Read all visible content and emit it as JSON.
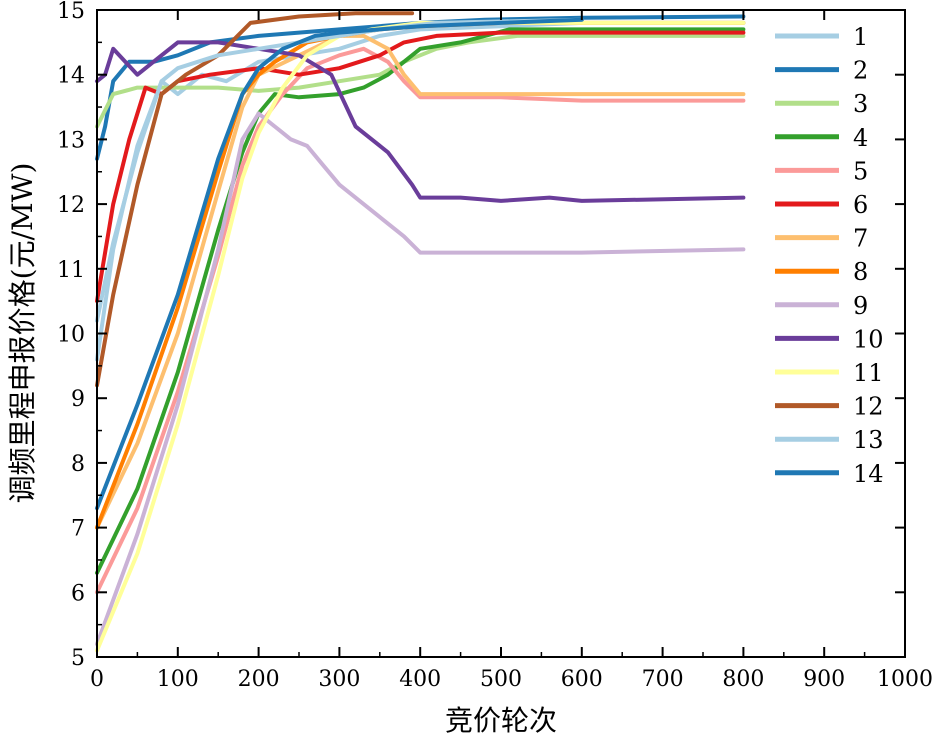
{
  "chart_data": {
    "type": "line",
    "title": "",
    "xlabel": "竞价轮次",
    "ylabel": "调频里程申报价格(元/MW)",
    "xlim": [
      0,
      1000
    ],
    "ylim": [
      5,
      15
    ],
    "x_ticks": [
      "0",
      "100",
      "200",
      "300",
      "400",
      "500",
      "600",
      "700",
      "800",
      "900",
      "1000"
    ],
    "y_ticks": [
      "5",
      "6",
      "7",
      "8",
      "9",
      "10",
      "11",
      "12",
      "13",
      "14",
      "15"
    ],
    "grid": false,
    "legend_position": "right",
    "series": [
      {
        "name": "1",
        "color": "#a6cee3",
        "points": [
          [
            0,
            9.6
          ],
          [
            20,
            11.3
          ],
          [
            50,
            12.9
          ],
          [
            80,
            13.9
          ],
          [
            100,
            13.7
          ],
          [
            130,
            14.0
          ],
          [
            160,
            13.9
          ],
          [
            200,
            14.2
          ],
          [
            250,
            14.3
          ],
          [
            300,
            14.4
          ],
          [
            350,
            14.6
          ],
          [
            400,
            14.7
          ],
          [
            500,
            14.75
          ],
          [
            600,
            14.8
          ],
          [
            800,
            14.8
          ]
        ]
      },
      {
        "name": "2",
        "color": "#1f78b4",
        "points": [
          [
            0,
            12.7
          ],
          [
            10,
            13.2
          ],
          [
            20,
            13.9
          ],
          [
            40,
            14.2
          ],
          [
            70,
            14.2
          ],
          [
            100,
            14.3
          ],
          [
            140,
            14.5
          ],
          [
            200,
            14.6
          ],
          [
            300,
            14.7
          ],
          [
            400,
            14.8
          ],
          [
            480,
            14.85
          ],
          [
            600,
            14.88
          ],
          [
            800,
            14.9
          ]
        ]
      },
      {
        "name": "3",
        "color": "#b2df8a",
        "points": [
          [
            0,
            13.2
          ],
          [
            20,
            13.7
          ],
          [
            50,
            13.8
          ],
          [
            100,
            13.8
          ],
          [
            150,
            13.8
          ],
          [
            200,
            13.75
          ],
          [
            250,
            13.8
          ],
          [
            300,
            13.9
          ],
          [
            350,
            14.0
          ],
          [
            380,
            14.2
          ],
          [
            420,
            14.4
          ],
          [
            460,
            14.5
          ],
          [
            520,
            14.6
          ],
          [
            600,
            14.6
          ],
          [
            800,
            14.6
          ]
        ]
      },
      {
        "name": "4",
        "color": "#33a02c",
        "points": [
          [
            0,
            6.3
          ],
          [
            50,
            7.6
          ],
          [
            100,
            9.4
          ],
          [
            150,
            11.6
          ],
          [
            180,
            12.8
          ],
          [
            200,
            13.4
          ],
          [
            220,
            13.7
          ],
          [
            250,
            13.65
          ],
          [
            300,
            13.7
          ],
          [
            330,
            13.8
          ],
          [
            360,
            14.0
          ],
          [
            400,
            14.4
          ],
          [
            450,
            14.5
          ],
          [
            510,
            14.7
          ],
          [
            600,
            14.7
          ],
          [
            800,
            14.7
          ]
        ]
      },
      {
        "name": "5",
        "color": "#fb9a99",
        "points": [
          [
            0,
            6.0
          ],
          [
            50,
            7.3
          ],
          [
            100,
            9.1
          ],
          [
            150,
            11.2
          ],
          [
            180,
            12.6
          ],
          [
            200,
            13.2
          ],
          [
            230,
            13.7
          ],
          [
            260,
            14.1
          ],
          [
            300,
            14.3
          ],
          [
            330,
            14.4
          ],
          [
            360,
            14.2
          ],
          [
            380,
            13.9
          ],
          [
            400,
            13.65
          ],
          [
            500,
            13.65
          ],
          [
            600,
            13.6
          ],
          [
            800,
            13.6
          ]
        ]
      },
      {
        "name": "6",
        "color": "#e31a1c",
        "points": [
          [
            0,
            10.5
          ],
          [
            20,
            12.0
          ],
          [
            40,
            13.0
          ],
          [
            60,
            13.8
          ],
          [
            80,
            13.7
          ],
          [
            100,
            13.9
          ],
          [
            140,
            14.0
          ],
          [
            200,
            14.1
          ],
          [
            250,
            14.0
          ],
          [
            300,
            14.1
          ],
          [
            350,
            14.3
          ],
          [
            380,
            14.5
          ],
          [
            420,
            14.6
          ],
          [
            500,
            14.65
          ],
          [
            600,
            14.65
          ],
          [
            800,
            14.65
          ]
        ]
      },
      {
        "name": "7",
        "color": "#fdbf6f",
        "points": [
          [
            0,
            7.0
          ],
          [
            50,
            8.3
          ],
          [
            100,
            10.0
          ],
          [
            150,
            12.2
          ],
          [
            180,
            13.5
          ],
          [
            200,
            14.0
          ],
          [
            250,
            14.3
          ],
          [
            300,
            14.6
          ],
          [
            330,
            14.6
          ],
          [
            360,
            14.4
          ],
          [
            380,
            14.0
          ],
          [
            400,
            13.7
          ],
          [
            500,
            13.7
          ],
          [
            600,
            13.7
          ],
          [
            800,
            13.7
          ]
        ]
      },
      {
        "name": "8",
        "color": "#ff7f00",
        "points": [
          [
            0,
            7.0
          ],
          [
            50,
            8.6
          ],
          [
            100,
            10.4
          ],
          [
            150,
            12.5
          ],
          [
            180,
            13.7
          ],
          [
            200,
            14.0
          ],
          [
            220,
            14.2
          ],
          [
            260,
            14.5
          ],
          [
            300,
            14.6
          ],
          [
            350,
            14.7
          ],
          [
            400,
            14.75
          ],
          [
            500,
            14.8
          ],
          [
            600,
            14.8
          ],
          [
            800,
            14.8
          ]
        ]
      },
      {
        "name": "9",
        "color": "#cab2d6",
        "points": [
          [
            0,
            5.2
          ],
          [
            50,
            6.9
          ],
          [
            100,
            8.9
          ],
          [
            150,
            11.3
          ],
          [
            180,
            13.0
          ],
          [
            200,
            13.4
          ],
          [
            220,
            13.2
          ],
          [
            240,
            13.0
          ],
          [
            260,
            12.9
          ],
          [
            280,
            12.6
          ],
          [
            300,
            12.3
          ],
          [
            340,
            11.9
          ],
          [
            380,
            11.5
          ],
          [
            400,
            11.25
          ],
          [
            500,
            11.25
          ],
          [
            600,
            11.25
          ],
          [
            800,
            11.3
          ]
        ]
      },
      {
        "name": "10",
        "color": "#6a3d9a",
        "points": [
          [
            0,
            13.9
          ],
          [
            10,
            14.0
          ],
          [
            20,
            14.4
          ],
          [
            50,
            14.0
          ],
          [
            80,
            14.3
          ],
          [
            100,
            14.5
          ],
          [
            150,
            14.5
          ],
          [
            200,
            14.4
          ],
          [
            250,
            14.3
          ],
          [
            290,
            14.0
          ],
          [
            320,
            13.2
          ],
          [
            360,
            12.8
          ],
          [
            390,
            12.3
          ],
          [
            400,
            12.1
          ],
          [
            450,
            12.1
          ],
          [
            500,
            12.05
          ],
          [
            560,
            12.1
          ],
          [
            600,
            12.05
          ],
          [
            800,
            12.1
          ]
        ]
      },
      {
        "name": "11",
        "color": "#ffff99",
        "points": [
          [
            0,
            5.1
          ],
          [
            50,
            6.6
          ],
          [
            100,
            8.6
          ],
          [
            150,
            10.9
          ],
          [
            180,
            12.4
          ],
          [
            200,
            13.1
          ],
          [
            230,
            13.8
          ],
          [
            260,
            14.3
          ],
          [
            300,
            14.6
          ],
          [
            340,
            14.7
          ],
          [
            400,
            14.8
          ],
          [
            500,
            14.8
          ],
          [
            800,
            14.8
          ]
        ]
      },
      {
        "name": "12",
        "color": "#b15928",
        "points": [
          [
            0,
            9.2
          ],
          [
            20,
            10.6
          ],
          [
            50,
            12.3
          ],
          [
            80,
            13.7
          ],
          [
            110,
            14.0
          ],
          [
            150,
            14.3
          ],
          [
            190,
            14.8
          ],
          [
            250,
            14.9
          ],
          [
            320,
            14.95
          ],
          [
            390,
            14.95
          ]
        ]
      },
      {
        "name": "13",
        "color": "#a6cee3",
        "points": [
          [
            0,
            10.2
          ],
          [
            20,
            11.4
          ],
          [
            50,
            12.8
          ],
          [
            80,
            13.9
          ],
          [
            100,
            14.1
          ],
          [
            150,
            14.3
          ],
          [
            200,
            14.4
          ],
          [
            250,
            14.5
          ],
          [
            300,
            14.6
          ],
          [
            350,
            14.7
          ],
          [
            420,
            14.8
          ],
          [
            600,
            14.85
          ]
        ]
      },
      {
        "name": "14",
        "color": "#1f78b4",
        "points": [
          [
            0,
            7.3
          ],
          [
            50,
            8.9
          ],
          [
            100,
            10.6
          ],
          [
            150,
            12.7
          ],
          [
            180,
            13.7
          ],
          [
            200,
            14.1
          ],
          [
            230,
            14.4
          ],
          [
            270,
            14.6
          ],
          [
            300,
            14.65
          ],
          [
            350,
            14.7
          ],
          [
            400,
            14.75
          ],
          [
            500,
            14.8
          ],
          [
            600,
            14.85
          ]
        ]
      }
    ]
  }
}
